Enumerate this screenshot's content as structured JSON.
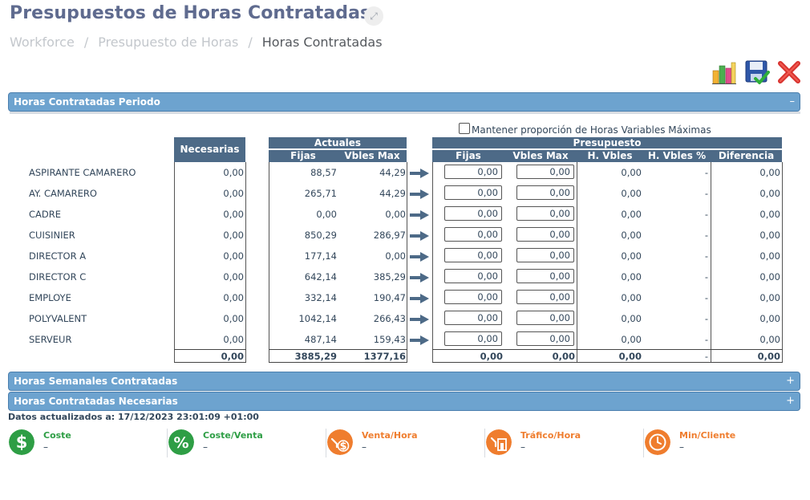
{
  "header": {
    "title": "Presupuestos de Horas Contratadas",
    "breadcrumb": [
      "Workforce",
      "Presupuesto de Horas",
      "Horas Contratadas"
    ],
    "breadcrumb_sep": "/"
  },
  "toolbar": {
    "icons": [
      "chart-icon",
      "save-icon",
      "close-icon"
    ]
  },
  "panels": {
    "periodo": {
      "title": "Horas Contratadas Periodo",
      "toggle": "–"
    },
    "semanales": {
      "title": "Horas Semanales Contratadas",
      "toggle": "+"
    },
    "necesarias": {
      "title": "Horas Contratadas Necesarias",
      "toggle": "+"
    }
  },
  "checkbox_label": "Mantener proporción de Horas Variables Máximas",
  "table": {
    "necesarias_header": "Necesarias",
    "actuales_header": "Actuales",
    "presupuesto_header": "Presupuesto",
    "actuales_cols": [
      "Fijas",
      "Vbles Max"
    ],
    "presupuesto_cols": [
      "Fijas",
      "Vbles Max",
      "H. Vbles",
      "H. Vbles %",
      "Diferencia"
    ],
    "rows": [
      {
        "label": "ASPIRANTE CAMARERO",
        "necesarias": "0,00",
        "fijas": "88,57",
        "vbles": "44,29",
        "p_fijas": "0,00",
        "p_vbles": "0,00",
        "h_vbles": "0,00",
        "h_vbles_pct": "-",
        "diferencia": "0,00"
      },
      {
        "label": "AY. CAMARERO",
        "necesarias": "0,00",
        "fijas": "265,71",
        "vbles": "44,29",
        "p_fijas": "0,00",
        "p_vbles": "0,00",
        "h_vbles": "0,00",
        "h_vbles_pct": "-",
        "diferencia": "0,00"
      },
      {
        "label": "CADRE",
        "necesarias": "0,00",
        "fijas": "0,00",
        "vbles": "0,00",
        "p_fijas": "0,00",
        "p_vbles": "0,00",
        "h_vbles": "0,00",
        "h_vbles_pct": "-",
        "diferencia": "0,00"
      },
      {
        "label": "CUISINIER",
        "necesarias": "0,00",
        "fijas": "850,29",
        "vbles": "286,97",
        "p_fijas": "0,00",
        "p_vbles": "0,00",
        "h_vbles": "0,00",
        "h_vbles_pct": "-",
        "diferencia": "0,00"
      },
      {
        "label": "DIRECTOR A",
        "necesarias": "0,00",
        "fijas": "177,14",
        "vbles": "0,00",
        "p_fijas": "0,00",
        "p_vbles": "0,00",
        "h_vbles": "0,00",
        "h_vbles_pct": "-",
        "diferencia": "0,00"
      },
      {
        "label": "DIRECTOR C",
        "necesarias": "0,00",
        "fijas": "642,14",
        "vbles": "385,29",
        "p_fijas": "0,00",
        "p_vbles": "0,00",
        "h_vbles": "0,00",
        "h_vbles_pct": "-",
        "diferencia": "0,00"
      },
      {
        "label": "EMPLOYE",
        "necesarias": "0,00",
        "fijas": "332,14",
        "vbles": "190,47",
        "p_fijas": "0,00",
        "p_vbles": "0,00",
        "h_vbles": "0,00",
        "h_vbles_pct": "-",
        "diferencia": "0,00"
      },
      {
        "label": "POLYVALENT",
        "necesarias": "0,00",
        "fijas": "1042,14",
        "vbles": "266,43",
        "p_fijas": "0,00",
        "p_vbles": "0,00",
        "h_vbles": "0,00",
        "h_vbles_pct": "-",
        "diferencia": "0,00"
      },
      {
        "label": "SERVEUR",
        "necesarias": "0,00",
        "fijas": "487,14",
        "vbles": "159,43",
        "p_fijas": "0,00",
        "p_vbles": "0,00",
        "h_vbles": "0,00",
        "h_vbles_pct": "-",
        "diferencia": "0,00"
      }
    ],
    "totals": {
      "necesarias": "0,00",
      "fijas": "3885,29",
      "vbles": "1377,16",
      "p_fijas": "0,00",
      "p_vbles": "0,00",
      "h_vbles": "0,00",
      "h_vbles_pct": "-",
      "diferencia": "0,00"
    }
  },
  "updated_text": "Datos actualizados a: 17/12/2023 23:01:09 +01:00",
  "kpis": [
    {
      "label": "Coste",
      "value": "–",
      "icon": "dollar-icon",
      "color": "#2e9e45"
    },
    {
      "label": "Coste/Venta",
      "value": "–",
      "icon": "percent-icon",
      "color": "#2e9e45"
    },
    {
      "label": "Venta/Hora",
      "value": "–",
      "icon": "hand-money-icon",
      "color": "#ef7d2e"
    },
    {
      "label": "Tráfico/Hora",
      "value": "–",
      "icon": "door-walk-icon",
      "color": "#ef7d2e"
    },
    {
      "label": "Min/Cliente",
      "value": "–",
      "icon": "clock-icon",
      "color": "#ef7d2e"
    }
  ],
  "colors": {
    "panel_header": "#6da3cf",
    "table_header": "#4d6a87",
    "title": "#5f6b8f",
    "green": "#2e9e45",
    "orange": "#ef7d2e"
  }
}
